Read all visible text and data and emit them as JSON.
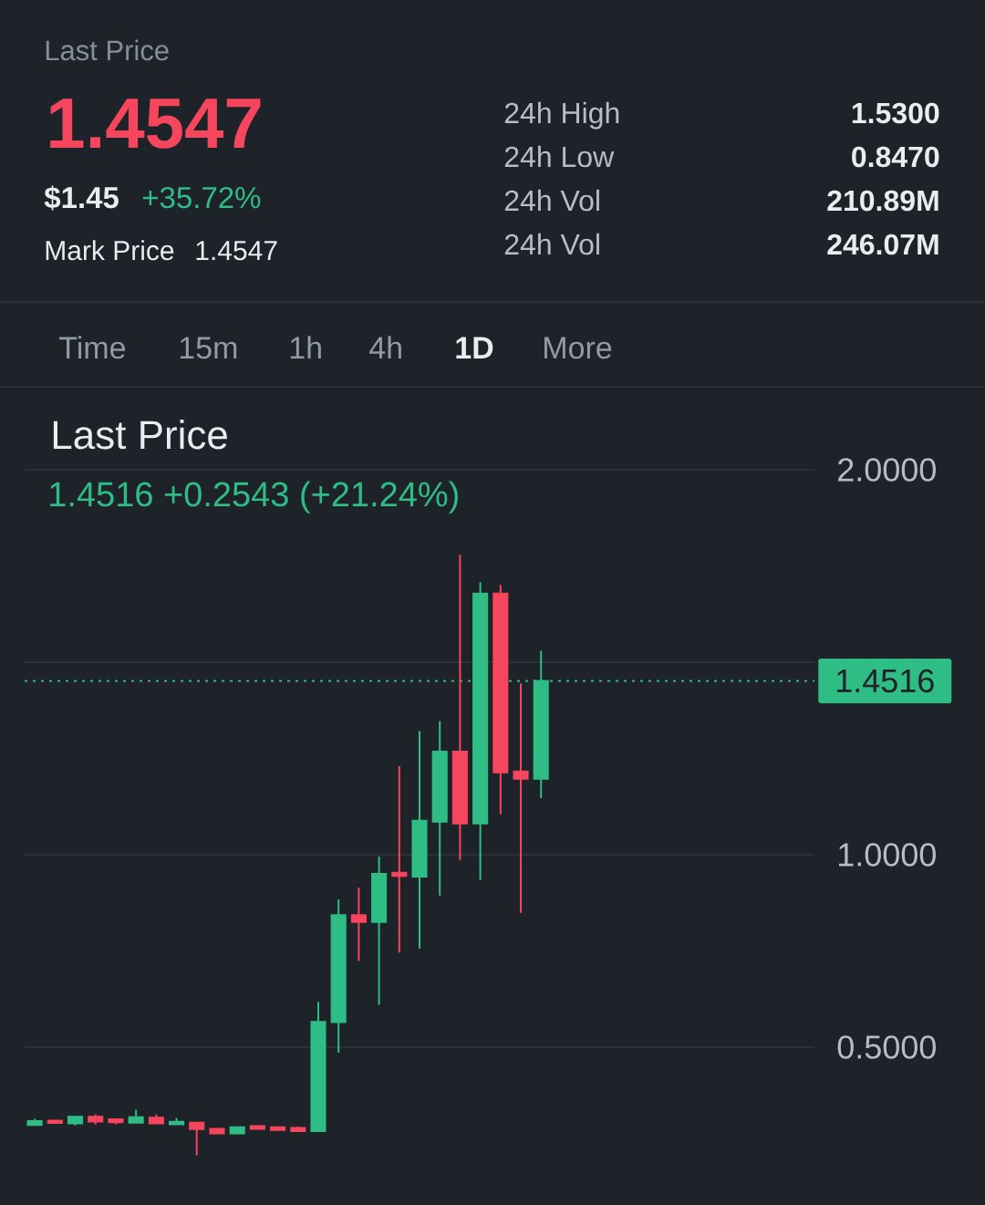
{
  "chart_data": {
    "type": "candlestick",
    "title": "Last Price",
    "subtitle": "1.4516  +0.2543 (+21.24%)",
    "annotations": [
      "Last Price",
      "1.4547",
      "$1.45",
      "+35.72%",
      "Mark Price",
      "1.4547",
      "24h High",
      "1.5300",
      "24h Low",
      "0.8470",
      "24h Vol",
      "210.89M",
      "24h Vol",
      "246.07M",
      "Time",
      "15m",
      "1h",
      "4h",
      "1D",
      "More"
    ],
    "categories": [
      null,
      null,
      null,
      null,
      null,
      null,
      null,
      null,
      null,
      null,
      null,
      null,
      null,
      null,
      null,
      null,
      null,
      null,
      null,
      null,
      null,
      null,
      null,
      null,
      null,
      null,
      null,
      null,
      null,
      null,
      null,
      null,
      null,
      null,
      null,
      null,
      null,
      null,
      null
    ],
    "ohlc": [
      [
        0.298,
        0.314,
        0.298,
        0.308
      ],
      [
        0.309,
        0.309,
        0.301,
        0.303
      ],
      [
        0.302,
        0.321,
        0.297,
        0.319
      ],
      [
        0.319,
        0.325,
        0.3,
        0.307
      ],
      [
        0.313,
        0.313,
        0.3,
        0.305
      ],
      [
        0.304,
        0.337,
        0.304,
        0.318
      ],
      [
        0.317,
        0.325,
        0.302,
        0.302
      ],
      [
        0.3,
        0.316,
        0.3,
        0.306
      ],
      [
        0.304,
        0.306,
        0.219,
        0.287
      ],
      [
        0.288,
        0.288,
        0.274,
        0.276
      ],
      [
        0.276,
        0.294,
        0.276,
        0.292
      ],
      [
        0.295,
        0.297,
        0.288,
        0.288
      ],
      [
        0.292,
        0.294,
        0.285,
        0.285
      ],
      [
        0.29,
        0.294,
        0.282,
        0.282
      ],
      [
        0.282,
        0.618,
        0.282,
        0.566
      ],
      [
        0.565,
        0.884,
        0.486,
        0.843
      ],
      [
        0.843,
        0.914,
        0.724,
        0.825
      ],
      [
        0.825,
        0.995,
        0.61,
        0.95
      ],
      [
        0.953,
        1.23,
        0.746,
        0.945
      ],
      [
        0.943,
        1.321,
        0.756,
        1.088
      ],
      [
        1.086,
        1.347,
        0.894,
        1.268
      ],
      [
        1.268,
        1.779,
        0.986,
        1.081
      ],
      [
        1.081,
        1.708,
        0.934,
        1.678
      ],
      [
        1.678,
        1.701,
        1.105,
        1.214
      ],
      [
        1.216,
        1.445,
        0.849,
        1.197
      ],
      [
        1.197,
        1.53,
        1.147,
        1.4516
      ],
      null,
      null,
      null,
      null,
      null,
      null,
      null,
      null,
      null,
      null,
      null,
      null,
      null
    ],
    "colors": [
      "#2ebd85",
      "#f6465d",
      "#2ebd85",
      "#f6465d",
      "#f6465d",
      "#2ebd85",
      "#f6465d",
      "#2ebd85",
      "#f6465d",
      "#f6465d",
      "#2ebd85",
      "#f6465d",
      "#f6465d",
      "#f6465d",
      "#2ebd85",
      "#2ebd85",
      "#f6465d",
      "#2ebd85",
      "#f6465d",
      "#2ebd85",
      "#2ebd85",
      "#f6465d",
      "#2ebd85",
      "#f6465d",
      "#f6465d",
      "#2ebd85",
      null,
      null,
      null,
      null,
      null,
      null,
      null,
      null,
      null,
      null,
      null,
      null,
      null
    ],
    "ylim": [
      0.09,
      2.0
    ],
    "yticks": [
      {
        "value": 0.5,
        "label": "0.5000"
      },
      {
        "value": 1,
        "label": "1.0000"
      },
      {
        "value": 1.5,
        "label": null
      },
      {
        "value": 2,
        "label": "2.0000"
      }
    ],
    "grid": "y",
    "tick_labels": "y",
    "ref_lines": [
      {
        "axis": "y",
        "value": 1.4516,
        "label": "1.4516",
        "color": "#2ebd85",
        "line_style": "dotted"
      }
    ]
  }
}
